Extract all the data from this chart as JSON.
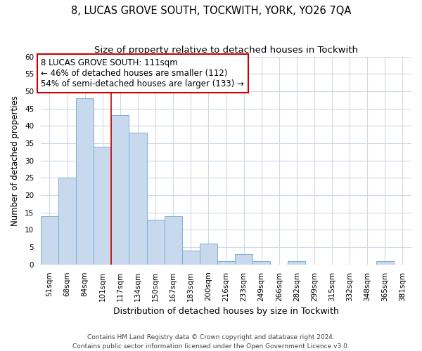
{
  "title": "8, LUCAS GROVE SOUTH, TOCKWITH, YORK, YO26 7QA",
  "subtitle": "Size of property relative to detached houses in Tockwith",
  "xlabel": "Distribution of detached houses by size in Tockwith",
  "ylabel": "Number of detached properties",
  "categories": [
    "51sqm",
    "68sqm",
    "84sqm",
    "101sqm",
    "117sqm",
    "134sqm",
    "150sqm",
    "167sqm",
    "183sqm",
    "200sqm",
    "216sqm",
    "233sqm",
    "249sqm",
    "266sqm",
    "282sqm",
    "299sqm",
    "315sqm",
    "332sqm",
    "348sqm",
    "365sqm",
    "381sqm"
  ],
  "values": [
    14,
    25,
    48,
    34,
    43,
    38,
    13,
    14,
    4,
    6,
    1,
    3,
    1,
    0,
    1,
    0,
    0,
    0,
    0,
    1,
    0
  ],
  "bar_color": "#c8d8ed",
  "bar_edge_color": "#7bafd4",
  "background_color": "#ffffff",
  "fig_background_color": "#ffffff",
  "grid_color": "#d0d8e8",
  "red_line_x": 3.5,
  "annotation_text": "8 LUCAS GROVE SOUTH: 111sqm\n← 46% of detached houses are smaller (112)\n54% of semi-detached houses are larger (133) →",
  "annotation_box_color": "#ffffff",
  "annotation_box_edge_color": "#cc0000",
  "ylim": [
    0,
    60
  ],
  "yticks": [
    0,
    5,
    10,
    15,
    20,
    25,
    30,
    35,
    40,
    45,
    50,
    55,
    60
  ],
  "footer": "Contains HM Land Registry data © Crown copyright and database right 2024.\nContains public sector information licensed under the Open Government Licence v3.0.",
  "title_fontsize": 10.5,
  "subtitle_fontsize": 9.5,
  "xlabel_fontsize": 9,
  "ylabel_fontsize": 8.5,
  "tick_fontsize": 7.5,
  "annotation_fontsize": 8.5,
  "footer_fontsize": 6.5
}
